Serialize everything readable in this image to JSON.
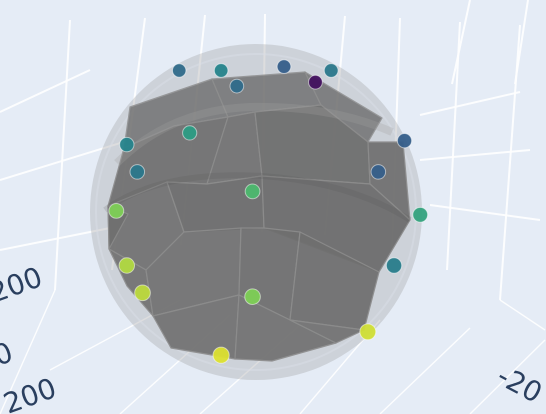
{
  "chart_data": {
    "type": "scatter3d",
    "background": "#e5ecf6",
    "grid": true,
    "grid_color": "#ffffff",
    "mesh_color": "#6f6f6f",
    "sphere_color": "#9a9a9a",
    "colorscale": "viridis",
    "visible_tick_labels": {
      "left_top": "200",
      "left_mid": "0",
      "left_bottom": "200",
      "right_bottom": "-20"
    },
    "points": [
      {
        "x": 0.3,
        "y": 0.15,
        "z": 0.25,
        "v": 0.35
      },
      {
        "x": 0.38,
        "y": 0.15,
        "z": 0.28,
        "v": 0.45
      },
      {
        "x": 0.41,
        "y": 0.19,
        "z": 0.29,
        "v": 0.35
      },
      {
        "x": 0.5,
        "y": 0.14,
        "z": 0.31,
        "v": 0.3
      },
      {
        "x": 0.56,
        "y": 0.18,
        "z": 0.32,
        "v": 0.05
      },
      {
        "x": 0.59,
        "y": 0.15,
        "z": 0.32,
        "v": 0.4
      },
      {
        "x": 0.73,
        "y": 0.33,
        "z": 0.43,
        "v": 0.3
      },
      {
        "x": 0.68,
        "y": 0.41,
        "z": 0.49,
        "v": 0.3
      },
      {
        "x": 0.2,
        "y": 0.34,
        "z": 0.44,
        "v": 0.45
      },
      {
        "x": 0.22,
        "y": 0.41,
        "z": 0.49,
        "v": 0.4
      },
      {
        "x": 0.44,
        "y": 0.46,
        "z": 0.53,
        "v": 0.68
      },
      {
        "x": 0.76,
        "y": 0.52,
        "z": 0.56,
        "v": 0.58
      },
      {
        "x": 0.18,
        "y": 0.51,
        "z": 0.55,
        "v": 0.8
      },
      {
        "x": 0.71,
        "y": 0.65,
        "z": 0.68,
        "v": 0.42
      },
      {
        "x": 0.2,
        "y": 0.65,
        "z": 0.69,
        "v": 0.88
      },
      {
        "x": 0.44,
        "y": 0.73,
        "z": 0.73,
        "v": 0.8
      },
      {
        "x": 0.66,
        "y": 0.82,
        "z": 0.81,
        "v": 0.93
      },
      {
        "x": 0.38,
        "y": 0.88,
        "z": 0.86,
        "v": 0.95
      },
      {
        "x": 0.23,
        "y": 0.72,
        "z": 0.75,
        "v": 0.9
      },
      {
        "x": 0.32,
        "y": 0.31,
        "z": 0.41,
        "v": 0.55
      }
    ]
  }
}
